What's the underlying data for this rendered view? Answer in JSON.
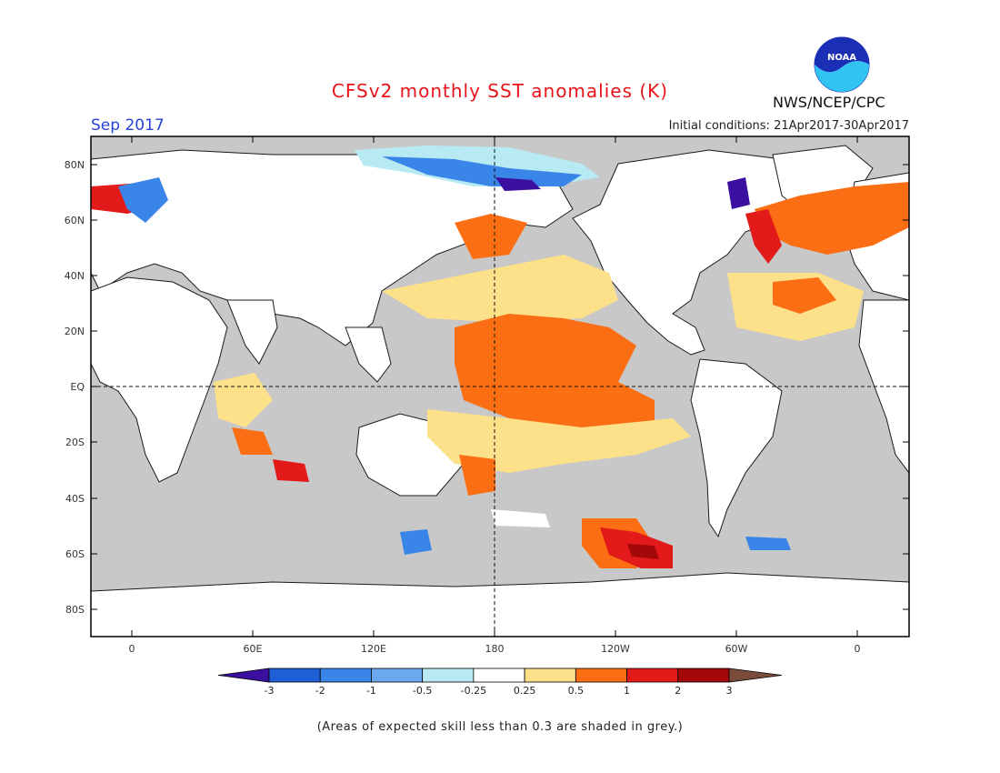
{
  "header": {
    "title": "CFSv2 monthly SST anomalies (K)",
    "month": "Sep 2017",
    "initial_conditions": "Initial conditions: 21Apr2017-30Apr2017",
    "agency": "NWS/NCEP/CPC",
    "logo_text": "NOAA"
  },
  "axes": {
    "lon_labels": [
      "0",
      "60E",
      "120E",
      "180",
      "120W",
      "60W",
      "0"
    ],
    "lat_labels": [
      "80N",
      "60N",
      "40N",
      "20N",
      "EQ",
      "20S",
      "40S",
      "60S",
      "80S"
    ]
  },
  "colorbar": {
    "labels": [
      "-3",
      "-2",
      "-1",
      "-0.5",
      "-0.25",
      "0.25",
      "0.5",
      "1",
      "2",
      "3"
    ],
    "colors": [
      "#3b0fa0",
      "#1f5fd6",
      "#3a86e8",
      "#6aa9ee",
      "#b8eaf3",
      "#ffffff",
      "#fde08a",
      "#fb6e14",
      "#e21a1a",
      "#a50808",
      "#7a4a3a"
    ]
  },
  "map_colors": {
    "land": "#ffffff",
    "skill_mask": "#c8c8c8",
    "light_blue": "#b8eaf3",
    "blue": "#3a86e8",
    "dark_blue": "#3b0fa0",
    "yellow": "#fde08a",
    "orange": "#fb6e14",
    "red": "#e21a1a",
    "dark_red": "#a50808"
  },
  "note": "(Areas of expected skill less than 0.3 are shaded in grey.)"
}
